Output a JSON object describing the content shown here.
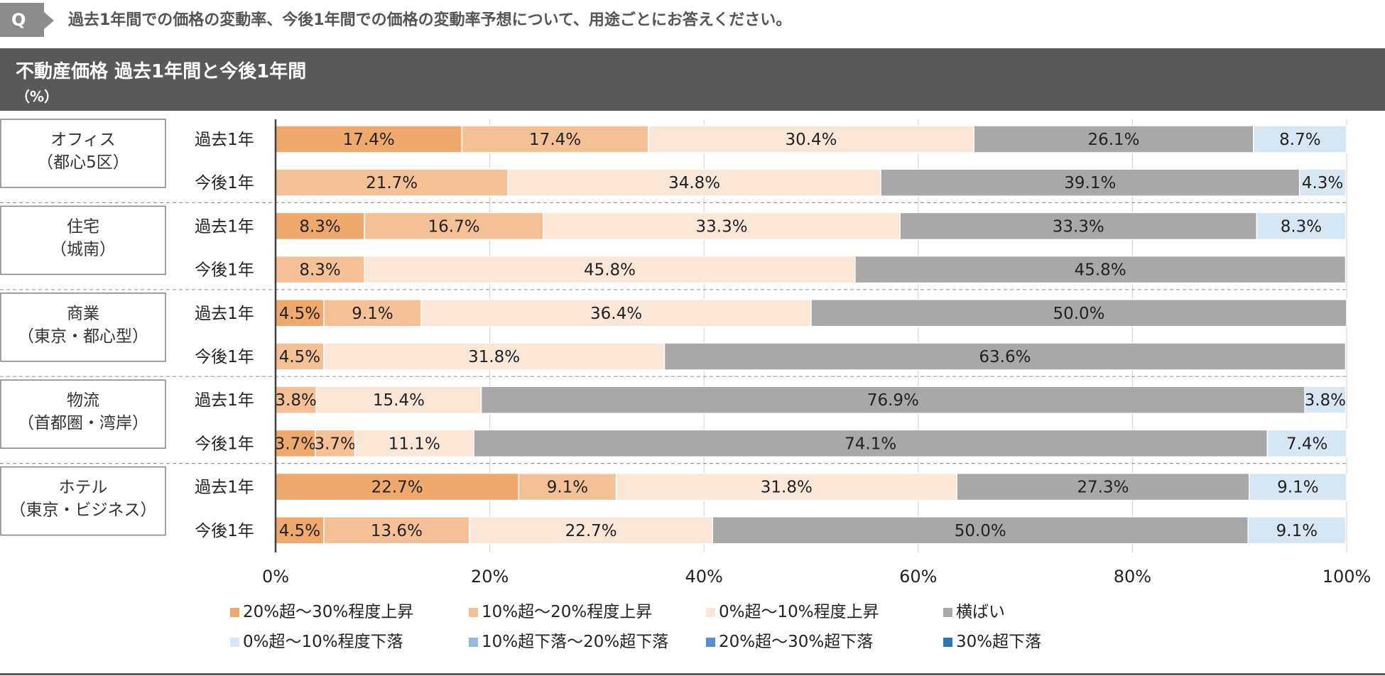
{
  "question": {
    "badge": "Q",
    "text": "過去1年間での価格の変動率、今後1年間での価格の変動率予想について、用途ごとにお答えください。"
  },
  "panel": {
    "title": "不動産価格 過去1年間と今後1年間",
    "unit": "（%）"
  },
  "chart_data": {
    "type": "bar",
    "orientation": "horizontal-stacked-100",
    "title": "不動産価格 過去1年間と今後1年間",
    "ylabel": "（%）",
    "xlim": [
      0,
      100
    ],
    "xticks": [
      "0%",
      "20%",
      "40%",
      "60%",
      "80%",
      "100%"
    ],
    "legend_position": "bottom",
    "series": [
      {
        "name": "20%超〜30%程度上昇",
        "color": "#f0a96c"
      },
      {
        "name": "10%超〜20%程度上昇",
        "color": "#f4c197"
      },
      {
        "name": "0%超〜10%程度上昇",
        "color": "#fbe7d8"
      },
      {
        "name": "横ばい",
        "color": "#a8a8a8"
      },
      {
        "name": "0%超〜10%程度下落",
        "color": "#d6e6f3"
      },
      {
        "name": "10%超下落〜20%超下落",
        "color": "#93b9dd"
      },
      {
        "name": "20%超〜30%超下落",
        "color": "#5b8fc9"
      },
      {
        "name": "30%超下落",
        "color": "#2e75b6"
      }
    ],
    "groups": [
      {
        "label": [
          "オフィス",
          "（都心5区）"
        ],
        "rows": [
          {
            "label": "過去1年",
            "values": [
              17.4,
              17.4,
              30.4,
              26.1,
              8.7,
              0,
              0,
              0
            ]
          },
          {
            "label": "今後1年",
            "values": [
              0,
              21.7,
              34.8,
              39.1,
              4.3,
              0,
              0,
              0
            ]
          }
        ]
      },
      {
        "label": [
          "住宅",
          "（城南）"
        ],
        "rows": [
          {
            "label": "過去1年",
            "values": [
              8.3,
              16.7,
              33.3,
              33.3,
              8.3,
              0,
              0,
              0
            ]
          },
          {
            "label": "今後1年",
            "values": [
              0,
              8.3,
              45.8,
              45.8,
              0,
              0,
              0,
              0
            ]
          }
        ]
      },
      {
        "label": [
          "商業",
          "（東京・都心型）"
        ],
        "rows": [
          {
            "label": "過去1年",
            "values": [
              4.5,
              9.1,
              36.4,
              50.0,
              0,
              0,
              0,
              0
            ]
          },
          {
            "label": "今後1年",
            "values": [
              0,
              4.5,
              31.8,
              63.6,
              0,
              0,
              0,
              0
            ]
          }
        ]
      },
      {
        "label": [
          "物流",
          "（首都圏・湾岸）"
        ],
        "rows": [
          {
            "label": "過去1年",
            "values": [
              0,
              3.8,
              15.4,
              76.9,
              3.8,
              0,
              0,
              0
            ]
          },
          {
            "label": "今後1年",
            "values": [
              3.7,
              3.7,
              11.1,
              74.1,
              7.4,
              0,
              0,
              0
            ]
          }
        ]
      },
      {
        "label": [
          "ホテル",
          "（東京・ビジネス）"
        ],
        "rows": [
          {
            "label": "過去1年",
            "values": [
              22.7,
              9.1,
              31.8,
              27.3,
              9.1,
              0,
              0,
              0
            ]
          },
          {
            "label": "今後1年",
            "values": [
              4.5,
              13.6,
              22.7,
              50.0,
              9.1,
              0,
              0,
              0
            ]
          }
        ]
      }
    ]
  }
}
